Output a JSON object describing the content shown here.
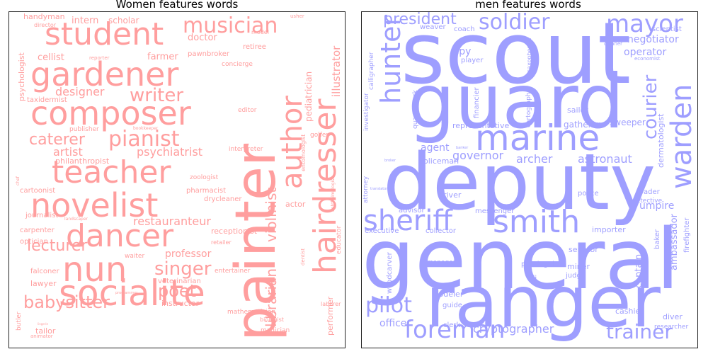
{
  "titles": {
    "women": "Women features words",
    "men": "men features words"
  },
  "colors": {
    "women": "#ff9e9e",
    "men": "#9e9eff"
  },
  "women_words": [
    "painter",
    "socialite",
    "hairdresser",
    "author",
    "composer",
    "gardener",
    "student",
    "teacher",
    "novelist",
    "dancer",
    "nun",
    "pianist",
    "caterer",
    "writer",
    "musician",
    "librarian",
    "violinist",
    "lecturer",
    "singer",
    "poet",
    "babysitter",
    "designer",
    "psychiatrist",
    "restauranteur",
    "professor",
    "artist",
    "illustrator",
    "pediatrician",
    "handyman",
    "intern",
    "scholar",
    "doctor",
    "usher",
    "director",
    "model",
    "retiree",
    "psychologist",
    "cellist",
    "reporter",
    "farmer",
    "pawnbroker",
    "concierge",
    "taxidermist",
    "editor",
    "entomologist",
    "golfer",
    "publisher",
    "bookkeeper",
    "philanthropist",
    "interpreter",
    "zoologist",
    "pharmacist",
    "drycleaner",
    "actor",
    "ophthalmologist",
    "cartoonist",
    "journalist",
    "carpenter",
    "landscaper",
    "receptionist",
    "optician",
    "retailer",
    "waiter",
    "dentist",
    "educator",
    "falconer",
    "entertainer",
    "lawyer",
    "veterinarian",
    "instructor",
    "laborer",
    "mathematician",
    "biologist",
    "magician",
    "butler",
    "tailor",
    "animator",
    "performer",
    "chef",
    "programmer",
    "lingerie"
  ],
  "men_words": [
    "scout",
    "guard",
    "deputy",
    "general",
    "ranger",
    "marine",
    "hunter",
    "warden",
    "smith",
    "sheriff",
    "pilot",
    "foreman",
    "soldier",
    "mayor",
    "courier",
    "president",
    "trainer",
    "cryptographer",
    "ambassador",
    "negotiator",
    "operator",
    "spy",
    "agent",
    "governor",
    "archer",
    "astronaut",
    "umpire",
    "captain",
    "calligrapher",
    "saxophonist",
    "cartographer",
    "investigator",
    "quarterback",
    "financier",
    "representative",
    "weaver",
    "coach",
    "player",
    "scientist",
    "cleaner",
    "economist",
    "sailor",
    "gatherer",
    "sweeper",
    "dermatologist",
    "policeman",
    "attorney",
    "advisor",
    "driver",
    "police",
    "trader",
    "detective",
    "firefighter",
    "messenger",
    "executive",
    "collector",
    "importer",
    "senator",
    "baker",
    "manager",
    "paralegal",
    "miner",
    "judge",
    "woodcarver",
    "dj",
    "yodeler",
    "officer",
    "guide",
    "clerk",
    "cashier",
    "diver",
    "researcher",
    "banker",
    "broker",
    "translator"
  ]
}
